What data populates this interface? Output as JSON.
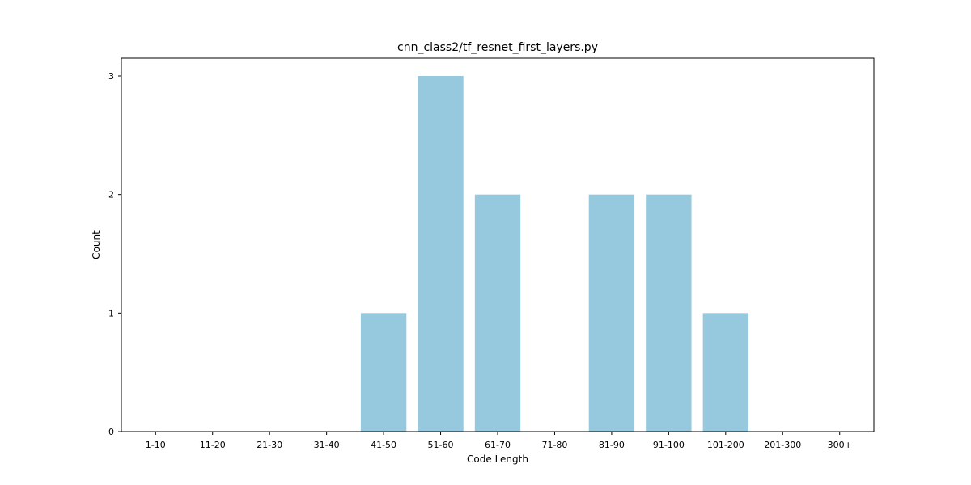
{
  "chart_data": {
    "type": "bar",
    "title": "cnn_class2/tf_resnet_first_layers.py",
    "xlabel": "Code Length",
    "ylabel": "Count",
    "categories": [
      "1-10",
      "11-20",
      "21-30",
      "31-40",
      "41-50",
      "51-60",
      "61-70",
      "71-80",
      "81-90",
      "91-100",
      "101-200",
      "201-300",
      "300+"
    ],
    "values": [
      0,
      0,
      0,
      0,
      1,
      3,
      2,
      0,
      2,
      2,
      1,
      0,
      0
    ],
    "ylim": [
      0,
      3.15
    ],
    "yticks": [
      0,
      1,
      2,
      3
    ],
    "grid": false,
    "bar_color": "#96c9dd"
  }
}
